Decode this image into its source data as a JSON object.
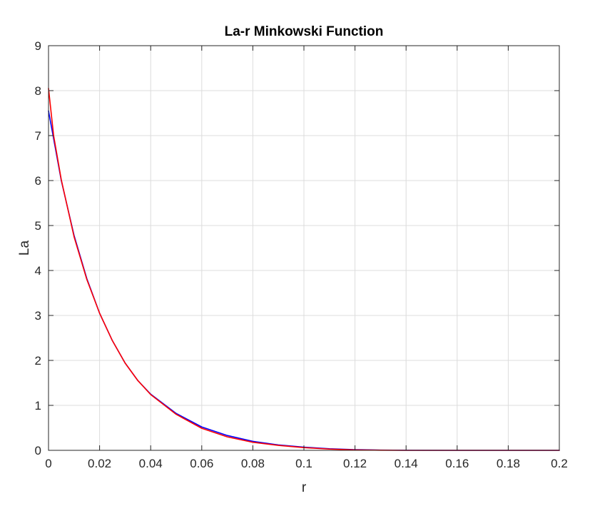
{
  "chart_data": {
    "type": "line",
    "title": "La-r Minkowski Function",
    "xlabel": "r",
    "ylabel": "La",
    "xlim": [
      0,
      0.2
    ],
    "ylim": [
      0,
      9
    ],
    "xticks": [
      "0",
      "0.02",
      "0.04",
      "0.06",
      "0.08",
      "0.1",
      "0.12",
      "0.14",
      "0.16",
      "0.18",
      "0.2"
    ],
    "yticks": [
      "0",
      "1",
      "2",
      "3",
      "4",
      "5",
      "6",
      "7",
      "8",
      "9"
    ],
    "grid": true,
    "legend": "none",
    "colors": {
      "blue_series": "#0000ff",
      "red_series": "#ff0000",
      "grid": "#dcdcdc",
      "axes": "#262626"
    },
    "series": [
      {
        "color": "#0000ff",
        "x": [
          0,
          0.005,
          0.01,
          0.015,
          0.02,
          0.025,
          0.03,
          0.035,
          0.04,
          0.05,
          0.06,
          0.07,
          0.08,
          0.09,
          0.1,
          0.11,
          0.12,
          0.13,
          0.14,
          0.16,
          0.18,
          0.2
        ],
        "y": [
          7.55,
          6.0,
          4.78,
          3.82,
          3.05,
          2.44,
          1.94,
          1.55,
          1.25,
          0.82,
          0.52,
          0.33,
          0.2,
          0.12,
          0.07,
          0.035,
          0.015,
          0.006,
          0.002,
          0,
          0,
          0
        ]
      },
      {
        "color": "#ff0000",
        "x": [
          0,
          0.002,
          0.005,
          0.01,
          0.015,
          0.02,
          0.025,
          0.03,
          0.035,
          0.04,
          0.05,
          0.06,
          0.07,
          0.08,
          0.09,
          0.1,
          0.11,
          0.12,
          0.13,
          0.14,
          0.16,
          0.18,
          0.2
        ],
        "y": [
          8.05,
          7.0,
          6.02,
          4.75,
          3.8,
          3.05,
          2.44,
          1.94,
          1.55,
          1.24,
          0.8,
          0.49,
          0.3,
          0.18,
          0.11,
          0.06,
          0.028,
          0.01,
          0.003,
          0,
          0,
          0,
          0
        ]
      }
    ]
  }
}
